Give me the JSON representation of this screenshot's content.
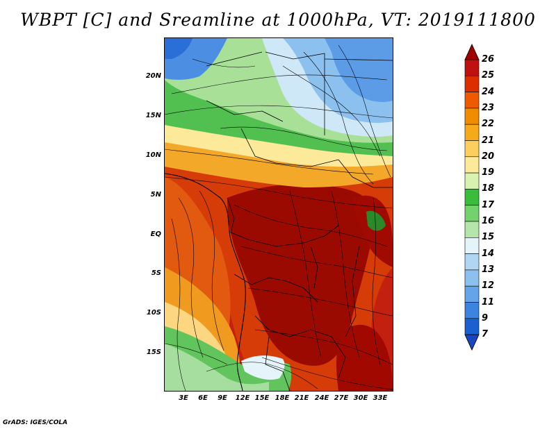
{
  "title": "WBPT [C] and Sreamline at 1000hPa, VT: 2019111800",
  "footer": "GrADS: IGES/COLA",
  "map": {
    "lat_labels": [
      "20N",
      "15N",
      "10N",
      "5N",
      "EQ",
      "5S",
      "10S",
      "15S"
    ],
    "lon_labels": [
      "3E",
      "6E",
      "9E",
      "12E",
      "15E",
      "18E",
      "21E",
      "24E",
      "27E",
      "30E",
      "33E"
    ]
  },
  "colorbar": {
    "levels": [
      "26",
      "25",
      "24",
      "23",
      "22",
      "21",
      "20",
      "19",
      "18",
      "17",
      "16",
      "15",
      "14",
      "13",
      "12",
      "11",
      "9",
      "7"
    ],
    "colors": [
      "#a00000",
      "#c01010",
      "#dd2e00",
      "#ee5a00",
      "#f08c00",
      "#f5aa1c",
      "#fcce60",
      "#fce99a",
      "#d8f2b0",
      "#3cbc3c",
      "#74d26c",
      "#b4e6ac",
      "#e4f4fa",
      "#b0d6f4",
      "#8cc0ee",
      "#64a4e8",
      "#3c84e0",
      "#1a60d0",
      "#1846c0"
    ]
  }
}
